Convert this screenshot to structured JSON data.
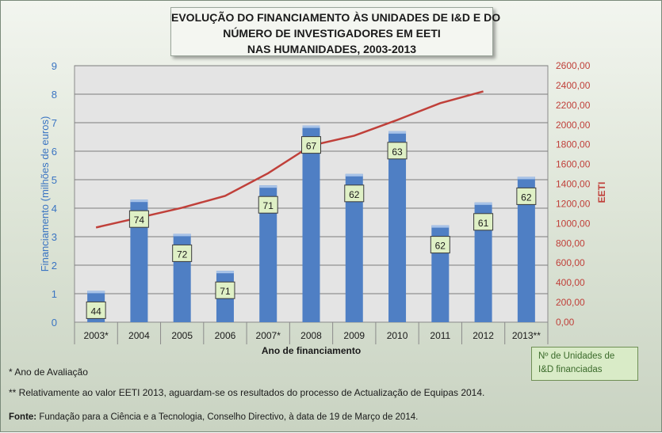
{
  "title_lines": [
    "EVOLUÇÃO DO FINANCIAMENTO ÀS UNIDADES DE I&D E DO",
    "NÚMERO DE INVESTIGADORES EM EETI",
    "NAS HUMANIDADES, 2003-2013"
  ],
  "legend": [
    "Nº de Unidades de",
    "I&D  financiadas"
  ],
  "notes": {
    "evaluation_year": "* Ano de Avaliação",
    "eeti_2013": "** Relativamente ao valor EETI 2013, aguardam-se os resultados do processo de Actualização de Equipas 2014.",
    "source": "Fonte: Fundação para a Ciência e a Tecnologia, Conselho Directivo, à data de 19 de Março de 2014."
  },
  "colors": {
    "bar": "#4f7fc4",
    "line": "#c0403a",
    "left_axis_text": "#3a74c2",
    "right_axis_text": "#c0403a",
    "label_box": "#dff0c6"
  },
  "chart_data": {
    "type": "bar",
    "title": "EVOLUÇÃO DO FINANCIAMENTO ÀS UNIDADES DE I&D E DO NÚMERO DE INVESTIGADORES EM EETI NAS HUMANIDADES, 2003-2013",
    "categories": [
      "2003*",
      "2004",
      "2005",
      "2006",
      "2007*",
      "2008",
      "2009",
      "2010",
      "2011",
      "2012",
      "2013**"
    ],
    "xlabel": "Ano de financiamento",
    "ylabel": "Financiamento (milhões de euros)",
    "y2label": "EETI",
    "ylim": [
      0,
      9
    ],
    "y2lim": [
      0,
      2600
    ],
    "yticks": [
      "0",
      "1",
      "2",
      "3",
      "4",
      "5",
      "6",
      "7",
      "8",
      "9"
    ],
    "y2ticks": [
      "0,00",
      "200,00",
      "400,00",
      "600,00",
      "800,00",
      "1000,00",
      "1200,00",
      "1400,00",
      "1600,00",
      "1800,00",
      "2000,00",
      "2200,00",
      "2400,00",
      "2600,00"
    ],
    "grid": true,
    "series": [
      {
        "type": "bar",
        "axis": "left",
        "values": [
          1.1,
          4.3,
          3.1,
          1.8,
          4.8,
          6.9,
          5.2,
          6.7,
          3.4,
          4.2,
          5.1
        ],
        "data_labels": [
          "44",
          "74",
          "72",
          "71",
          "71",
          "67",
          "62",
          "63",
          "62",
          "61",
          "62"
        ]
      },
      {
        "type": "line",
        "axis": "right",
        "values": [
          960,
          1060,
          1160,
          1280,
          1510,
          1790,
          1890,
          2050,
          2220,
          2340,
          null
        ]
      }
    ]
  }
}
